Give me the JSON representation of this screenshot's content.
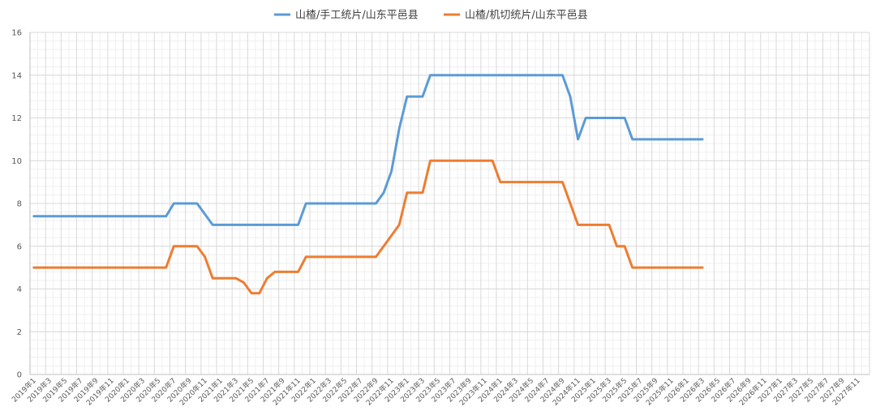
{
  "chart_data": {
    "type": "line",
    "title": "",
    "xlabel": "",
    "ylabel": "",
    "ylim": [
      0,
      16
    ],
    "yticks": [
      0,
      2,
      4,
      6,
      8,
      10,
      12,
      14,
      16
    ],
    "grid": true,
    "legend_position": "top",
    "x_tick_labels": [
      "2019年1",
      "2019年3",
      "2019年5",
      "2019年7",
      "2019年9",
      "2019年11",
      "2020年1",
      "2020年3",
      "2020年5",
      "2020年7",
      "2020年9",
      "2020年11",
      "2021年1",
      "2021年3",
      "2021年5",
      "2021年7",
      "2021年9",
      "2021年11",
      "2022年1",
      "2022年3",
      "2022年5",
      "2022年7",
      "2022年9",
      "2022年11",
      "2023年1",
      "2023年3",
      "2023年5",
      "2023年7",
      "2023年9",
      "2023年11",
      "2024年1",
      "2024年3",
      "2024年5",
      "2024年7",
      "2024年9",
      "2024年11",
      "2025年1",
      "2025年3",
      "2025年5",
      "2025年7",
      "2025年9",
      "2025年11",
      "2026年1",
      "2026年3",
      "2026年5",
      "2026年7",
      "2026年9",
      "2026年11",
      "2027年1",
      "2027年3",
      "2027年5",
      "2027年7",
      "2027年9",
      "2027年11"
    ],
    "x_start": "2019-01",
    "x_months": 108,
    "series": [
      {
        "name": "山楂/手工统片/山东平邑县",
        "color": "#5b9bd5",
        "points": [
          [
            "2019-01",
            7.4
          ],
          [
            "2020-06",
            7.4
          ],
          [
            "2020-07",
            8.0
          ],
          [
            "2020-10",
            8.0
          ],
          [
            "2020-12",
            7.0
          ],
          [
            "2021-10",
            7.0
          ],
          [
            "2021-11",
            7.0
          ],
          [
            "2021-12",
            8.0
          ],
          [
            "2022-09",
            8.0
          ],
          [
            "2022-10",
            8.5
          ],
          [
            "2022-11",
            9.5
          ],
          [
            "2022-12",
            11.5
          ],
          [
            "2023-01",
            13.0
          ],
          [
            "2023-03",
            13.0
          ],
          [
            "2023-04",
            14.0
          ],
          [
            "2024-09",
            14.0
          ],
          [
            "2024-10",
            13.0
          ],
          [
            "2024-11",
            11.0
          ],
          [
            "2024-12",
            12.0
          ],
          [
            "2025-05",
            12.0
          ],
          [
            "2025-06",
            11.0
          ],
          [
            "2026-03",
            11.0
          ]
        ]
      },
      {
        "name": "山楂/机切统片/山东平邑县",
        "color": "#ed7d31",
        "points": [
          [
            "2019-01",
            5.0
          ],
          [
            "2020-06",
            5.0
          ],
          [
            "2020-07",
            6.0
          ],
          [
            "2020-10",
            6.0
          ],
          [
            "2020-11",
            5.5
          ],
          [
            "2020-12",
            4.5
          ],
          [
            "2021-03",
            4.5
          ],
          [
            "2021-04",
            4.3
          ],
          [
            "2021-05",
            3.8
          ],
          [
            "2021-06",
            3.8
          ],
          [
            "2021-07",
            4.5
          ],
          [
            "2021-08",
            4.8
          ],
          [
            "2021-11",
            4.8
          ],
          [
            "2021-12",
            5.5
          ],
          [
            "2022-09",
            5.5
          ],
          [
            "2022-12",
            7.0
          ],
          [
            "2023-01",
            8.5
          ],
          [
            "2023-03",
            8.5
          ],
          [
            "2023-04",
            10.0
          ],
          [
            "2023-12",
            10.0
          ],
          [
            "2024-01",
            9.0
          ],
          [
            "2024-09",
            9.0
          ],
          [
            "2024-11",
            7.0
          ],
          [
            "2025-03",
            7.0
          ],
          [
            "2025-04",
            6.0
          ],
          [
            "2025-05",
            6.0
          ],
          [
            "2025-06",
            5.0
          ],
          [
            "2026-03",
            5.0
          ]
        ]
      }
    ]
  }
}
